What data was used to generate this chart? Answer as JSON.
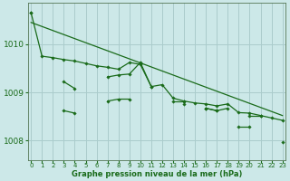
{
  "bg_color": "#cce8e8",
  "grid_color": "#aacccc",
  "line_color": "#1a6b1a",
  "xlabel": "Graphe pression niveau de la mer (hPa)",
  "xticks": [
    0,
    1,
    2,
    3,
    4,
    5,
    6,
    7,
    8,
    9,
    10,
    11,
    12,
    13,
    14,
    15,
    16,
    17,
    18,
    19,
    20,
    21,
    22,
    23
  ],
  "yticks": [
    1008,
    1009,
    1010
  ],
  "ylim": [
    1007.6,
    1010.85
  ],
  "xlim": [
    -0.3,
    23.3
  ],
  "series1_x": [
    0,
    1,
    2,
    3,
    4,
    5,
    6,
    7,
    8,
    9,
    10,
    11,
    12,
    13,
    14,
    15,
    16,
    17,
    18,
    19,
    20,
    21,
    22,
    23
  ],
  "series1_y": [
    1010.65,
    1009.75,
    1009.72,
    1009.68,
    1009.65,
    1009.6,
    1009.55,
    1009.52,
    1009.48,
    1009.62,
    1009.58,
    1009.12,
    1009.16,
    1008.88,
    1008.82,
    1008.78,
    1008.76,
    1008.72,
    1008.76,
    1008.58,
    1008.57,
    1008.52,
    1008.47,
    1008.42
  ],
  "series2_segments": [
    [
      [
        0,
        1010.65
      ]
    ],
    [
      [
        3,
        1009.22
      ],
      [
        4,
        1009.08
      ]
    ],
    [
      [
        7,
        1009.32
      ],
      [
        8,
        1009.36
      ],
      [
        9,
        1009.38
      ],
      [
        10,
        1009.62
      ],
      [
        11,
        1009.12
      ]
    ],
    [
      [
        13,
        1008.82
      ],
      [
        14,
        1008.82
      ]
    ],
    [
      [
        16,
        1008.67
      ],
      [
        17,
        1008.62
      ],
      [
        18,
        1008.67
      ]
    ],
    [
      [
        20,
        1008.52
      ],
      [
        21,
        1008.52
      ]
    ],
    [
      [
        23,
        1007.96
      ]
    ]
  ],
  "series3_segments": [
    [
      [
        3,
        1008.62
      ],
      [
        4,
        1008.57
      ]
    ],
    [
      [
        7,
        1008.82
      ],
      [
        8,
        1008.86
      ],
      [
        9,
        1008.86
      ]
    ],
    [
      [
        14,
        1008.76
      ]
    ],
    [
      [
        16,
        1008.67
      ],
      [
        17,
        1008.62
      ]
    ],
    [
      [
        19,
        1008.28
      ],
      [
        20,
        1008.28
      ]
    ]
  ],
  "trend_x": [
    0,
    23
  ],
  "trend_y": [
    1010.45,
    1008.52
  ],
  "xlabel_fontsize": 6.0,
  "ytick_fontsize": 6.5,
  "xtick_fontsize": 5.0
}
